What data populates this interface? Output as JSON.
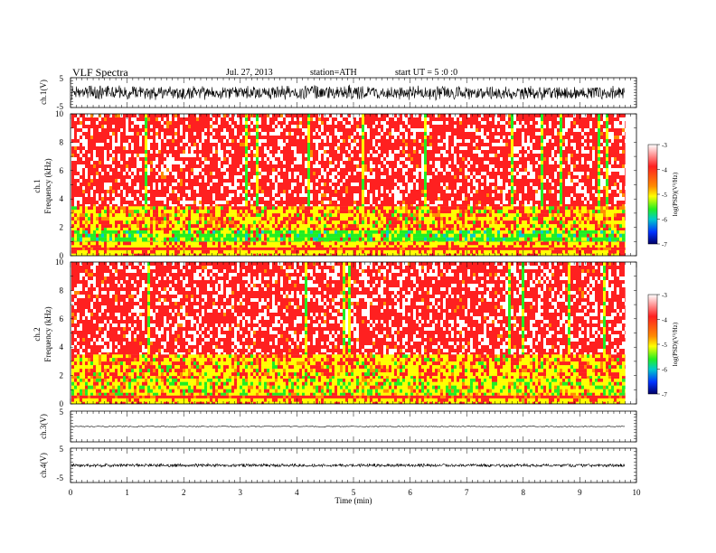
{
  "header": {
    "title": "VLF Spectra",
    "date": "Jul. 27, 2013",
    "station": "station=ATH",
    "start_time": "start UT = 5 :0 :0"
  },
  "chart_data": [
    {
      "id": "ch1-waveform",
      "type": "line",
      "ylabel": "ch.1(V)",
      "ylim": [
        -5,
        5
      ],
      "yticks": [
        "5",
        "-5"
      ],
      "x_range_min": [
        0,
        9.8
      ],
      "trace": {
        "center": 0,
        "amplitude": 2.2,
        "color": "#000000"
      }
    },
    {
      "id": "ch1-spectrogram",
      "type": "heatmap",
      "ylabel": "ch.1 Frequency (kHz)",
      "ylim": [
        0,
        10
      ],
      "yticks": [
        "0",
        "2",
        "4",
        "6",
        "8",
        "10"
      ],
      "x_range_min": [
        0,
        9.8
      ],
      "bands_khz": [
        {
          "from": 0,
          "to": 0.4,
          "level": "yellow"
        },
        {
          "from": 0.4,
          "to": 0.6,
          "level": "red"
        },
        {
          "from": 0.6,
          "to": 1.0,
          "level": "yellow"
        },
        {
          "from": 1.0,
          "to": 1.8,
          "level": "green"
        },
        {
          "from": 1.8,
          "to": 3.5,
          "level": "yellow-red"
        },
        {
          "from": 3.5,
          "to": 10,
          "level": "red-white"
        }
      ],
      "colorbar": {
        "label": "log(PSD)(V²/Hz)",
        "range": [
          -7,
          -3
        ],
        "ticks": [
          "-3",
          "-4",
          "-5",
          "-6",
          "-7"
        ]
      }
    },
    {
      "id": "ch2-spectrogram",
      "type": "heatmap",
      "ylabel": "ch.2 Frequency (kHz)",
      "ylim": [
        0,
        10
      ],
      "yticks": [
        "0",
        "2",
        "4",
        "6",
        "8",
        "10"
      ],
      "x_range_min": [
        0,
        9.8
      ],
      "bands_khz": [
        {
          "from": 0,
          "to": 0.4,
          "level": "yellow"
        },
        {
          "from": 0.4,
          "to": 0.6,
          "level": "red"
        },
        {
          "from": 0.6,
          "to": 1.8,
          "level": "yellow-green"
        },
        {
          "from": 1.8,
          "to": 3.5,
          "level": "yellow-red"
        },
        {
          "from": 3.5,
          "to": 10,
          "level": "red-white"
        }
      ],
      "colorbar": {
        "label": "log(PSD)(V²/Hz)",
        "range": [
          -7,
          -3
        ],
        "ticks": [
          "-3",
          "-4",
          "-5",
          "-6",
          "-7"
        ]
      }
    },
    {
      "id": "ch3-waveform",
      "type": "line",
      "ylabel": "ch.3(V)",
      "ylim": [
        -5,
        5
      ],
      "yticks": [
        "5",
        "-5"
      ],
      "x_range_min": [
        0,
        9.8
      ],
      "trace": {
        "center": 0,
        "amplitude": 0.15,
        "color": "#000000"
      }
    },
    {
      "id": "ch4-waveform",
      "type": "line",
      "ylabel": "ch.4(V)",
      "ylim": [
        -5,
        5
      ],
      "yticks": [
        "5",
        "-5"
      ],
      "x_range_min": [
        0,
        9.8
      ],
      "trace": {
        "center": 0,
        "amplitude": 0.45,
        "color": "#000000"
      }
    }
  ],
  "x_axis": {
    "label": "Time (min)",
    "xlim": [
      0,
      10
    ],
    "ticks": [
      "0",
      "1",
      "2",
      "3",
      "4",
      "5",
      "6",
      "7",
      "8",
      "9",
      "10"
    ]
  },
  "colors": {
    "white": "#ffffff",
    "red": "#ff2020",
    "orange": "#ff8c00",
    "yellow": "#ffff00",
    "green": "#22ee22",
    "cyan": "#00cccc",
    "blue": "#0033ff",
    "navy": "#000066"
  }
}
